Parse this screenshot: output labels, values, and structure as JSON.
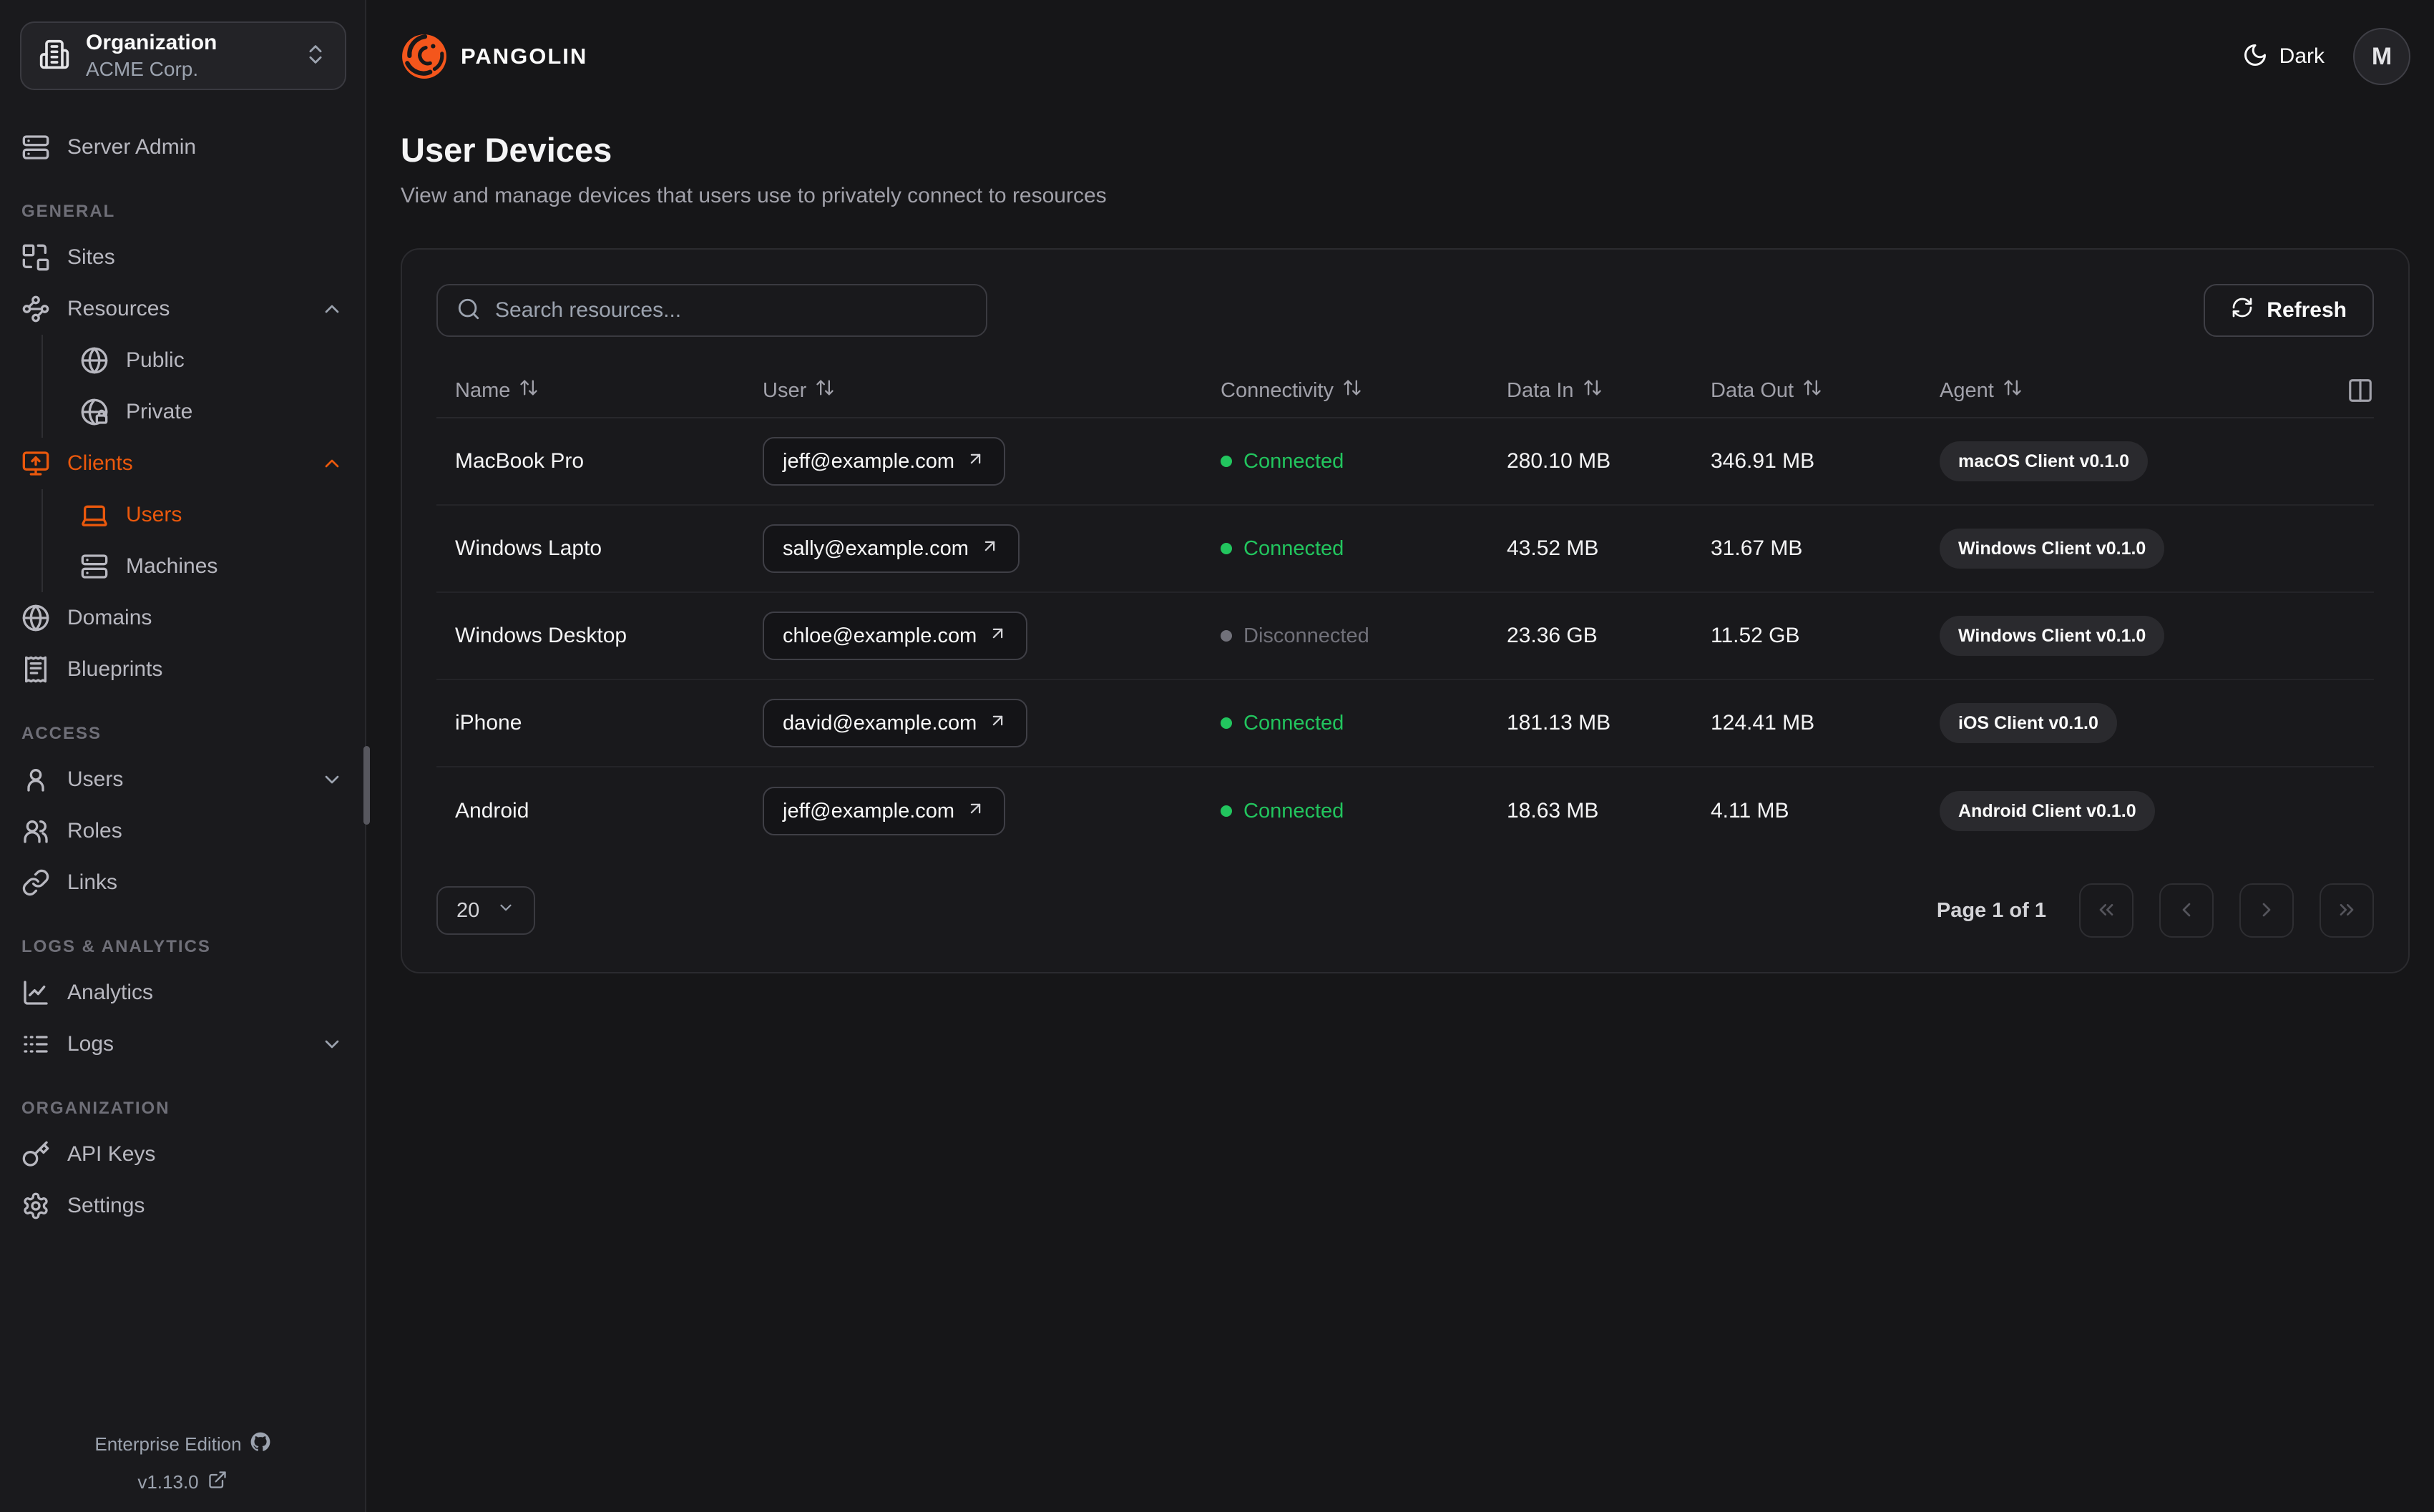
{
  "colors": {
    "accent": "#ea580c",
    "green": "#22c55e",
    "disconnected": "#71717a",
    "logo_orange": "#f4561c"
  },
  "sidebar": {
    "org_switcher": {
      "label": "Organization",
      "value": "ACME Corp.",
      "icon": "building-icon",
      "chevron_icon": "chevrons-up-down-icon"
    },
    "server_admin": {
      "label": "Server Admin",
      "icon": "server-icon"
    },
    "sections": [
      {
        "heading": "GENERAL",
        "items": [
          {
            "label": "Sites",
            "icon": "sites-icon"
          },
          {
            "label": "Resources",
            "icon": "resources-icon",
            "chevron": "up",
            "children": [
              {
                "label": "Public",
                "icon": "globe-icon"
              },
              {
                "label": "Private",
                "icon": "globe-lock-icon"
              }
            ]
          },
          {
            "label": "Clients",
            "icon": "monitor-up-icon",
            "chevron": "up",
            "active": true,
            "children": [
              {
                "label": "Users",
                "icon": "laptop-icon",
                "active": true
              },
              {
                "label": "Machines",
                "icon": "server-icon"
              }
            ]
          },
          {
            "label": "Domains",
            "icon": "globe-icon"
          },
          {
            "label": "Blueprints",
            "icon": "receipt-icon"
          }
        ]
      },
      {
        "heading": "ACCESS",
        "items": [
          {
            "label": "Users",
            "icon": "user-icon",
            "chevron": "down"
          },
          {
            "label": "Roles",
            "icon": "users-icon"
          },
          {
            "label": "Links",
            "icon": "link-icon"
          }
        ]
      },
      {
        "heading": "LOGS & ANALYTICS",
        "items": [
          {
            "label": "Analytics",
            "icon": "chart-line-icon"
          },
          {
            "label": "Logs",
            "icon": "logs-icon",
            "chevron": "down"
          }
        ]
      },
      {
        "heading": "ORGANIZATION",
        "items": [
          {
            "label": "API Keys",
            "icon": "key-icon"
          },
          {
            "label": "Settings",
            "icon": "gear-icon"
          }
        ]
      }
    ],
    "footer": {
      "edition": "Enterprise Edition",
      "edition_icon": "github-icon",
      "version": "v1.13.0",
      "version_icon": "external-link-icon"
    }
  },
  "header": {
    "brand": "PANGOLIN",
    "logo_icon": "pangolin-logo-icon",
    "theme_label": "Dark",
    "theme_icon": "moon-icon",
    "avatar_initial": "M"
  },
  "page": {
    "title": "User Devices",
    "subtitle": "View and manage devices that users use to privately connect to resources"
  },
  "toolbar": {
    "search_placeholder": "Search resources...",
    "search_icon": "search-icon",
    "refresh_label": "Refresh",
    "refresh_icon": "refresh-icon",
    "columns_icon": "columns-icon",
    "sort_icon": "sort-icon"
  },
  "table": {
    "columns": [
      "Name",
      "User",
      "Connectivity",
      "Data In",
      "Data Out",
      "Agent"
    ],
    "rows": [
      {
        "name": "MacBook Pro",
        "user": "jeff@example.com",
        "connectivity": "Connected",
        "connected": true,
        "data_in": "280.10 MB",
        "data_out": "346.91 MB",
        "agent": "macOS Client v0.1.0"
      },
      {
        "name": "Windows Lapto",
        "user": "sally@example.com",
        "connectivity": "Connected",
        "connected": true,
        "data_in": "43.52 MB",
        "data_out": "31.67 MB",
        "agent": "Windows Client v0.1.0"
      },
      {
        "name": "Windows Desktop",
        "user": "chloe@example.com",
        "connectivity": "Disconnected",
        "connected": false,
        "data_in": "23.36 GB",
        "data_out": "11.52 GB",
        "agent": "Windows Client v0.1.0"
      },
      {
        "name": "iPhone",
        "user": "david@example.com",
        "connectivity": "Connected",
        "connected": true,
        "data_in": "181.13 MB",
        "data_out": "124.41 MB",
        "agent": "iOS Client v0.1.0"
      },
      {
        "name": "Android",
        "user": "jeff@example.com",
        "connectivity": "Connected",
        "connected": true,
        "data_in": "18.63 MB",
        "data_out": "4.11 MB",
        "agent": "Android Client v0.1.0"
      }
    ]
  },
  "pagination": {
    "page_size": "20",
    "status": "Page 1 of 1"
  }
}
